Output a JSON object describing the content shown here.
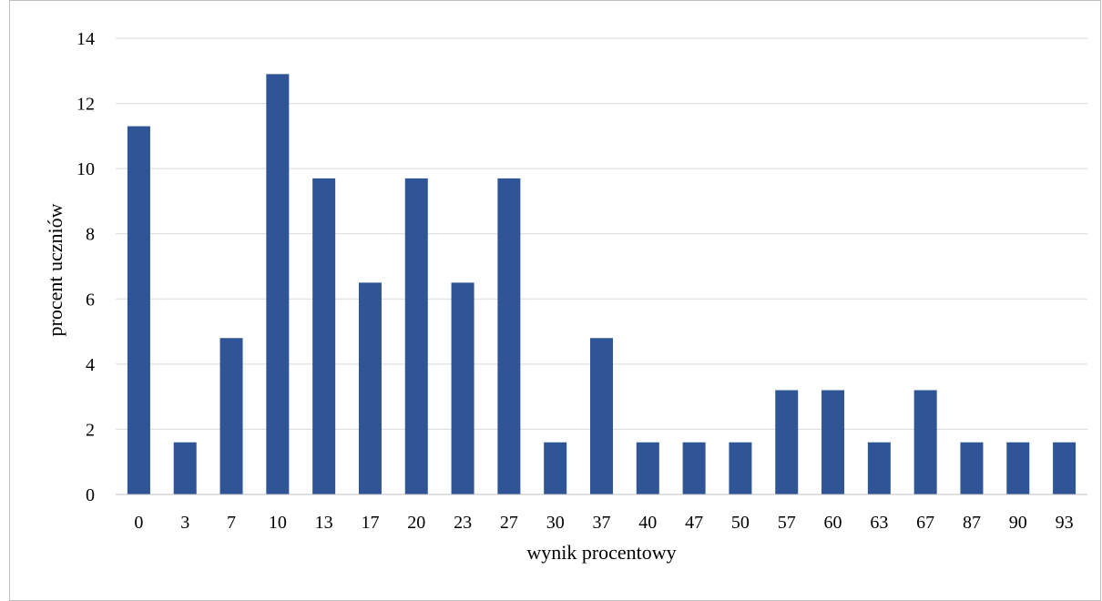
{
  "chart_data": {
    "type": "bar",
    "title": "",
    "xlabel": "wynik procentowy",
    "ylabel": "procent uczniów",
    "categories": [
      "0",
      "3",
      "7",
      "10",
      "13",
      "17",
      "20",
      "23",
      "27",
      "30",
      "37",
      "40",
      "47",
      "50",
      "57",
      "60",
      "63",
      "67",
      "87",
      "90",
      "93"
    ],
    "values": [
      11.3,
      1.6,
      4.8,
      12.9,
      9.7,
      6.5,
      9.7,
      6.5,
      9.7,
      1.6,
      4.8,
      1.6,
      1.6,
      1.6,
      3.2,
      3.2,
      1.6,
      3.2,
      1.6,
      1.6,
      1.6
    ],
    "ylim": [
      0,
      14
    ],
    "yticks": [
      "0",
      "2",
      "4",
      "6",
      "8",
      "10",
      "12",
      "14"
    ],
    "grid": true,
    "legend": "none",
    "colors": {
      "bar": "#2F5597",
      "grid": "#d9d9d9",
      "axis": "#bfbfbf"
    }
  }
}
